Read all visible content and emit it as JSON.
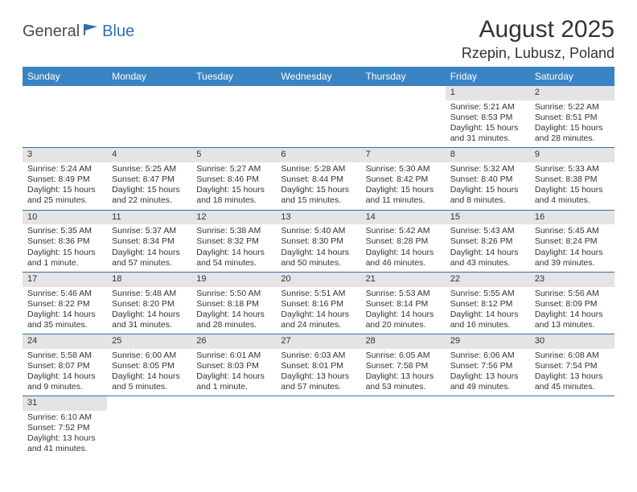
{
  "logo": {
    "general": "General",
    "blue": "Blue"
  },
  "title": "August 2025",
  "location": "Rzepin, Lubusz, Poland",
  "colors": {
    "header_bg": "#3b84c4",
    "header_text": "#ffffff",
    "daynum_bg": "#e4e4e4",
    "row_border": "#2f6fb0",
    "text": "#333333",
    "logo_gray": "#4a4a4a",
    "logo_blue": "#2f6fb0"
  },
  "weekdays": [
    "Sunday",
    "Monday",
    "Tuesday",
    "Wednesday",
    "Thursday",
    "Friday",
    "Saturday"
  ],
  "weeks": [
    [
      null,
      null,
      null,
      null,
      null,
      {
        "n": "1",
        "sr": "Sunrise: 5:21 AM",
        "ss": "Sunset: 8:53 PM",
        "dl": "Daylight: 15 hours and 31 minutes."
      },
      {
        "n": "2",
        "sr": "Sunrise: 5:22 AM",
        "ss": "Sunset: 8:51 PM",
        "dl": "Daylight: 15 hours and 28 minutes."
      }
    ],
    [
      {
        "n": "3",
        "sr": "Sunrise: 5:24 AM",
        "ss": "Sunset: 8:49 PM",
        "dl": "Daylight: 15 hours and 25 minutes."
      },
      {
        "n": "4",
        "sr": "Sunrise: 5:25 AM",
        "ss": "Sunset: 8:47 PM",
        "dl": "Daylight: 15 hours and 22 minutes."
      },
      {
        "n": "5",
        "sr": "Sunrise: 5:27 AM",
        "ss": "Sunset: 8:46 PM",
        "dl": "Daylight: 15 hours and 18 minutes."
      },
      {
        "n": "6",
        "sr": "Sunrise: 5:28 AM",
        "ss": "Sunset: 8:44 PM",
        "dl": "Daylight: 15 hours and 15 minutes."
      },
      {
        "n": "7",
        "sr": "Sunrise: 5:30 AM",
        "ss": "Sunset: 8:42 PM",
        "dl": "Daylight: 15 hours and 11 minutes."
      },
      {
        "n": "8",
        "sr": "Sunrise: 5:32 AM",
        "ss": "Sunset: 8:40 PM",
        "dl": "Daylight: 15 hours and 8 minutes."
      },
      {
        "n": "9",
        "sr": "Sunrise: 5:33 AM",
        "ss": "Sunset: 8:38 PM",
        "dl": "Daylight: 15 hours and 4 minutes."
      }
    ],
    [
      {
        "n": "10",
        "sr": "Sunrise: 5:35 AM",
        "ss": "Sunset: 8:36 PM",
        "dl": "Daylight: 15 hours and 1 minute."
      },
      {
        "n": "11",
        "sr": "Sunrise: 5:37 AM",
        "ss": "Sunset: 8:34 PM",
        "dl": "Daylight: 14 hours and 57 minutes."
      },
      {
        "n": "12",
        "sr": "Sunrise: 5:38 AM",
        "ss": "Sunset: 8:32 PM",
        "dl": "Daylight: 14 hours and 54 minutes."
      },
      {
        "n": "13",
        "sr": "Sunrise: 5:40 AM",
        "ss": "Sunset: 8:30 PM",
        "dl": "Daylight: 14 hours and 50 minutes."
      },
      {
        "n": "14",
        "sr": "Sunrise: 5:42 AM",
        "ss": "Sunset: 8:28 PM",
        "dl": "Daylight: 14 hours and 46 minutes."
      },
      {
        "n": "15",
        "sr": "Sunrise: 5:43 AM",
        "ss": "Sunset: 8:26 PM",
        "dl": "Daylight: 14 hours and 43 minutes."
      },
      {
        "n": "16",
        "sr": "Sunrise: 5:45 AM",
        "ss": "Sunset: 8:24 PM",
        "dl": "Daylight: 14 hours and 39 minutes."
      }
    ],
    [
      {
        "n": "17",
        "sr": "Sunrise: 5:46 AM",
        "ss": "Sunset: 8:22 PM",
        "dl": "Daylight: 14 hours and 35 minutes."
      },
      {
        "n": "18",
        "sr": "Sunrise: 5:48 AM",
        "ss": "Sunset: 8:20 PM",
        "dl": "Daylight: 14 hours and 31 minutes."
      },
      {
        "n": "19",
        "sr": "Sunrise: 5:50 AM",
        "ss": "Sunset: 8:18 PM",
        "dl": "Daylight: 14 hours and 28 minutes."
      },
      {
        "n": "20",
        "sr": "Sunrise: 5:51 AM",
        "ss": "Sunset: 8:16 PM",
        "dl": "Daylight: 14 hours and 24 minutes."
      },
      {
        "n": "21",
        "sr": "Sunrise: 5:53 AM",
        "ss": "Sunset: 8:14 PM",
        "dl": "Daylight: 14 hours and 20 minutes."
      },
      {
        "n": "22",
        "sr": "Sunrise: 5:55 AM",
        "ss": "Sunset: 8:12 PM",
        "dl": "Daylight: 14 hours and 16 minutes."
      },
      {
        "n": "23",
        "sr": "Sunrise: 5:56 AM",
        "ss": "Sunset: 8:09 PM",
        "dl": "Daylight: 14 hours and 13 minutes."
      }
    ],
    [
      {
        "n": "24",
        "sr": "Sunrise: 5:58 AM",
        "ss": "Sunset: 8:07 PM",
        "dl": "Daylight: 14 hours and 9 minutes."
      },
      {
        "n": "25",
        "sr": "Sunrise: 6:00 AM",
        "ss": "Sunset: 8:05 PM",
        "dl": "Daylight: 14 hours and 5 minutes."
      },
      {
        "n": "26",
        "sr": "Sunrise: 6:01 AM",
        "ss": "Sunset: 8:03 PM",
        "dl": "Daylight: 14 hours and 1 minute."
      },
      {
        "n": "27",
        "sr": "Sunrise: 6:03 AM",
        "ss": "Sunset: 8:01 PM",
        "dl": "Daylight: 13 hours and 57 minutes."
      },
      {
        "n": "28",
        "sr": "Sunrise: 6:05 AM",
        "ss": "Sunset: 7:58 PM",
        "dl": "Daylight: 13 hours and 53 minutes."
      },
      {
        "n": "29",
        "sr": "Sunrise: 6:06 AM",
        "ss": "Sunset: 7:56 PM",
        "dl": "Daylight: 13 hours and 49 minutes."
      },
      {
        "n": "30",
        "sr": "Sunrise: 6:08 AM",
        "ss": "Sunset: 7:54 PM",
        "dl": "Daylight: 13 hours and 45 minutes."
      }
    ],
    [
      {
        "n": "31",
        "sr": "Sunrise: 6:10 AM",
        "ss": "Sunset: 7:52 PM",
        "dl": "Daylight: 13 hours and 41 minutes."
      },
      null,
      null,
      null,
      null,
      null,
      null
    ]
  ]
}
